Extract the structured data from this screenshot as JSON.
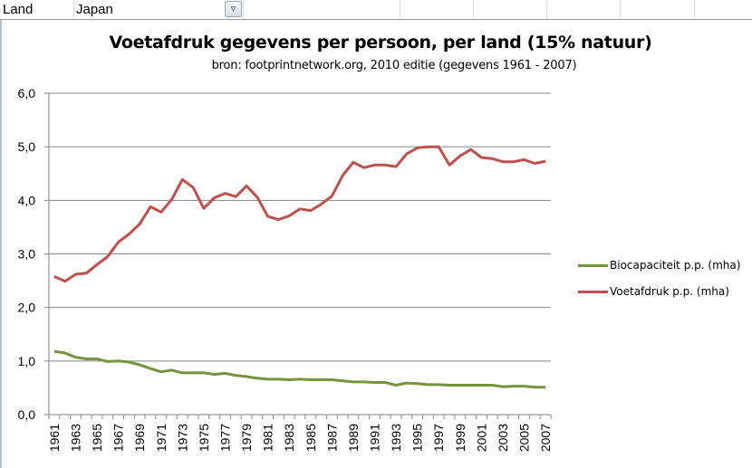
{
  "filter": {
    "label": "Land",
    "value": "Japan",
    "dropdown_icon": "filter-dropdown-icon"
  },
  "chart_data": {
    "type": "line",
    "title": "Voetafdruk gegevens per persoon,  per land (15% natuur)",
    "subtitle": "bron: footprintnetwork.org, 2010 editie (gegevens 1961 - 2007)",
    "xlabel": "",
    "ylabel": "",
    "ylim": [
      0,
      6
    ],
    "yticks": [
      "0,0",
      "1,0",
      "2,0",
      "3,0",
      "4,0",
      "5,0",
      "6,0"
    ],
    "grid": true,
    "legend": "right",
    "x": [
      1961,
      1962,
      1963,
      1964,
      1965,
      1966,
      1967,
      1968,
      1969,
      1970,
      1971,
      1972,
      1973,
      1974,
      1975,
      1976,
      1977,
      1978,
      1979,
      1980,
      1981,
      1982,
      1983,
      1984,
      1985,
      1986,
      1987,
      1988,
      1989,
      1990,
      1991,
      1992,
      1993,
      1994,
      1995,
      1996,
      1997,
      1998,
      1999,
      2000,
      2001,
      2002,
      2003,
      2004,
      2005,
      2006,
      2007
    ],
    "xtick_labels": [
      "1961",
      "1963",
      "1965",
      "1967",
      "1969",
      "1971",
      "1973",
      "1975",
      "1977",
      "1979",
      "1981",
      "1983",
      "1985",
      "1987",
      "1989",
      "1991",
      "1993",
      "1995",
      "1997",
      "1999",
      "2001",
      "2003",
      "2005",
      "2007"
    ],
    "series": [
      {
        "name": "Biocapaciteit  p.p. (mha)",
        "color": "#77933c",
        "values": [
          1.18,
          1.15,
          1.07,
          1.04,
          1.04,
          0.99,
          1.0,
          0.98,
          0.93,
          0.86,
          0.8,
          0.83,
          0.78,
          0.78,
          0.78,
          0.75,
          0.77,
          0.73,
          0.71,
          0.68,
          0.66,
          0.66,
          0.65,
          0.66,
          0.65,
          0.65,
          0.65,
          0.63,
          0.61,
          0.61,
          0.6,
          0.6,
          0.55,
          0.59,
          0.58,
          0.56,
          0.56,
          0.55,
          0.55,
          0.55,
          0.55,
          0.55,
          0.52,
          0.53,
          0.53,
          0.51,
          0.51
        ]
      },
      {
        "name": "Voetafdruk p.p. (mha)",
        "color": "#c0504d",
        "values": [
          2.58,
          2.49,
          2.62,
          2.64,
          2.8,
          2.95,
          3.22,
          3.37,
          3.56,
          3.88,
          3.78,
          4.02,
          4.39,
          4.24,
          3.85,
          4.05,
          4.13,
          4.07,
          4.27,
          4.06,
          3.7,
          3.64,
          3.71,
          3.84,
          3.81,
          3.93,
          4.08,
          4.46,
          4.71,
          4.61,
          4.66,
          4.66,
          4.63,
          4.87,
          4.98,
          5.0,
          5.0,
          4.66,
          4.83,
          4.95,
          4.8,
          4.78,
          4.72,
          4.72,
          4.76,
          4.69,
          4.73
        ]
      }
    ]
  }
}
